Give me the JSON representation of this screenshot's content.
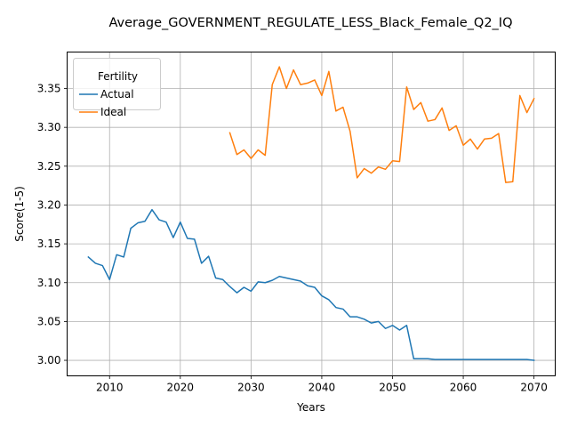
{
  "chart_data": {
    "type": "line",
    "title": "Average_GOVERNMENT_REGULATE_LESS_Black_Female_Q2_IQ",
    "xlabel": "Years",
    "ylabel": "Score(1-5)",
    "xlim": [
      2004,
      2073
    ],
    "ylim": [
      2.98,
      3.397
    ],
    "xticks": [
      2010,
      2020,
      2030,
      2040,
      2050,
      2060,
      2070
    ],
    "yticks": [
      3.0,
      3.05,
      3.1,
      3.15,
      3.2,
      3.25,
      3.3,
      3.35
    ],
    "ytick_labels": [
      "3.00",
      "3.05",
      "3.10",
      "3.15",
      "3.20",
      "3.25",
      "3.30",
      "3.35"
    ],
    "grid": true,
    "legend": {
      "title": "Fertility",
      "placement": "top-left"
    },
    "series": [
      {
        "name": "Actual",
        "color": "#1f77b4",
        "x": [
          2007,
          2008,
          2009,
          2010,
          2011,
          2012,
          2013,
          2014,
          2015,
          2016,
          2017,
          2018,
          2019,
          2020,
          2021,
          2022,
          2023,
          2024,
          2025,
          2026,
          2027,
          2028,
          2029,
          2030,
          2031,
          2032,
          2033,
          2034,
          2035,
          2036,
          2037,
          2038,
          2039,
          2040,
          2041,
          2042,
          2043,
          2044,
          2045,
          2046,
          2047,
          2048,
          2049,
          2050,
          2051,
          2052,
          2053,
          2054,
          2055,
          2056,
          2057,
          2058,
          2059,
          2060,
          2061,
          2062,
          2063,
          2064,
          2065,
          2066,
          2067,
          2068,
          2069,
          2070
        ],
        "y": [
          3.133,
          3.125,
          3.122,
          3.104,
          3.136,
          3.133,
          3.17,
          3.177,
          3.179,
          3.194,
          3.181,
          3.178,
          3.158,
          3.178,
          3.157,
          3.156,
          3.125,
          3.134,
          3.106,
          3.104,
          3.095,
          3.087,
          3.094,
          3.089,
          3.101,
          3.1,
          3.103,
          3.108,
          3.106,
          3.104,
          3.102,
          3.096,
          3.094,
          3.083,
          3.078,
          3.068,
          3.066,
          3.056,
          3.056,
          3.053,
          3.048,
          3.05,
          3.041,
          3.045,
          3.039,
          3.045,
          3.002,
          3.002,
          3.002,
          3.001,
          3.001,
          3.001,
          3.001,
          3.001,
          3.001,
          3.001,
          3.001,
          3.001,
          3.001,
          3.001,
          3.001,
          3.001,
          3.001,
          3.0
        ]
      },
      {
        "name": "Ideal",
        "color": "#ff7f0e",
        "x": [
          2027,
          2028,
          2029,
          2030,
          2031,
          2032,
          2033,
          2034,
          2035,
          2036,
          2037,
          2038,
          2039,
          2040,
          2041,
          2042,
          2043,
          2044,
          2045,
          2046,
          2047,
          2048,
          2049,
          2050,
          2051,
          2052,
          2053,
          2054,
          2055,
          2056,
          2057,
          2058,
          2059,
          2060,
          2061,
          2062,
          2063,
          2064,
          2065,
          2066,
          2067,
          2068,
          2069,
          2070
        ],
        "y": [
          3.293,
          3.265,
          3.271,
          3.26,
          3.271,
          3.264,
          3.355,
          3.378,
          3.35,
          3.374,
          3.355,
          3.357,
          3.361,
          3.341,
          3.372,
          3.321,
          3.326,
          3.295,
          3.235,
          3.247,
          3.241,
          3.249,
          3.246,
          3.257,
          3.256,
          3.352,
          3.323,
          3.332,
          3.308,
          3.31,
          3.325,
          3.296,
          3.302,
          3.277,
          3.285,
          3.272,
          3.285,
          3.286,
          3.292,
          3.229,
          3.23,
          3.341,
          3.319,
          3.337
        ]
      }
    ]
  }
}
